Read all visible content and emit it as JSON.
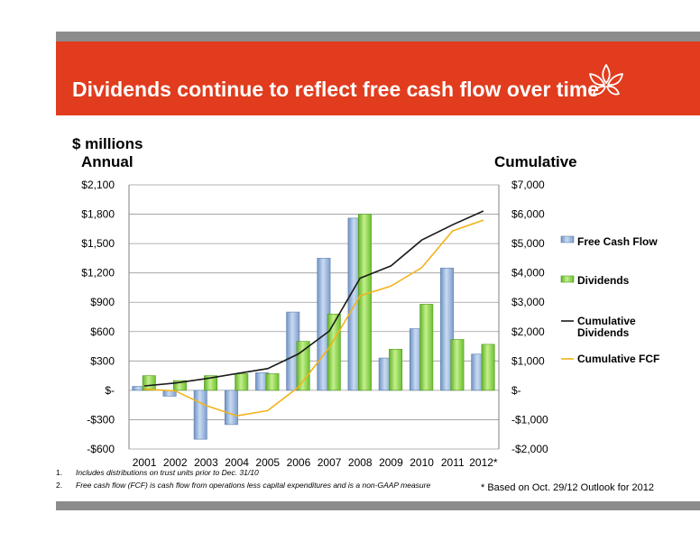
{
  "title": "Dividends continue to reflect free cash flow over time",
  "units_label": "$ millions",
  "left_heading": "Annual",
  "right_heading": "Cumulative",
  "footnotes": [
    {
      "num": "1.",
      "text": "Includes distributions on trust units prior to Dec. 31/10"
    },
    {
      "num": "2.",
      "text": "Free cash flow (FCF) is cash flow from operations less capital expenditures and is a non-GAAP measure"
    }
  ],
  "note": "* Based on Oct. 29/12 Outlook for 2012",
  "colors": {
    "fcf_bar": "#8fafd9",
    "div_bar": "#8cd24a",
    "cum_div": "#1a1a1a",
    "cum_fcf": "#f2b31b",
    "accent": "#e03c1d"
  },
  "chart_data": {
    "type": "bar",
    "categories": [
      "2001",
      "2002",
      "2003",
      "2004",
      "2005",
      "2006",
      "2007",
      "2008",
      "2009",
      "2010",
      "2011",
      "2012*"
    ],
    "series": [
      {
        "name": "Free Cash Flow",
        "kind": "bar",
        "axis": "left",
        "values": [
          40,
          -60,
          -500,
          -350,
          180,
          800,
          1350,
          1760,
          330,
          630,
          1250,
          370
        ]
      },
      {
        "name": "Dividends",
        "kind": "bar",
        "axis": "left",
        "values": [
          150,
          100,
          150,
          170,
          170,
          500,
          780,
          1800,
          420,
          880,
          520,
          470
        ]
      },
      {
        "name": "Cumulative Dividends",
        "kind": "line",
        "axis": "right",
        "values": [
          150,
          250,
          400,
          570,
          740,
          1240,
          2020,
          3820,
          4240,
          5120,
          5640,
          6110
        ]
      },
      {
        "name": "Cumulative FCF",
        "kind": "line",
        "axis": "right",
        "values": [
          40,
          -20,
          -520,
          -870,
          -690,
          110,
          1460,
          3220,
          3550,
          4180,
          5430,
          5800
        ]
      }
    ],
    "left_axis": {
      "min": -600,
      "max": 2100,
      "step": 300,
      "tick_labels": [
        "-$600",
        "-$300",
        "$-",
        "$300",
        "$600",
        "$900",
        "$1,200",
        "$1,500",
        "$1,800",
        "$2,100"
      ]
    },
    "right_axis": {
      "min": -2000,
      "max": 7000,
      "step": 1000,
      "tick_labels": [
        "-$2,000",
        "-$1,000",
        "$-",
        "$1,000",
        "$2,000",
        "$3,000",
        "$4,000",
        "$5,000",
        "$6,000",
        "$7,000"
      ]
    },
    "grid": true,
    "legend_position": "right"
  }
}
